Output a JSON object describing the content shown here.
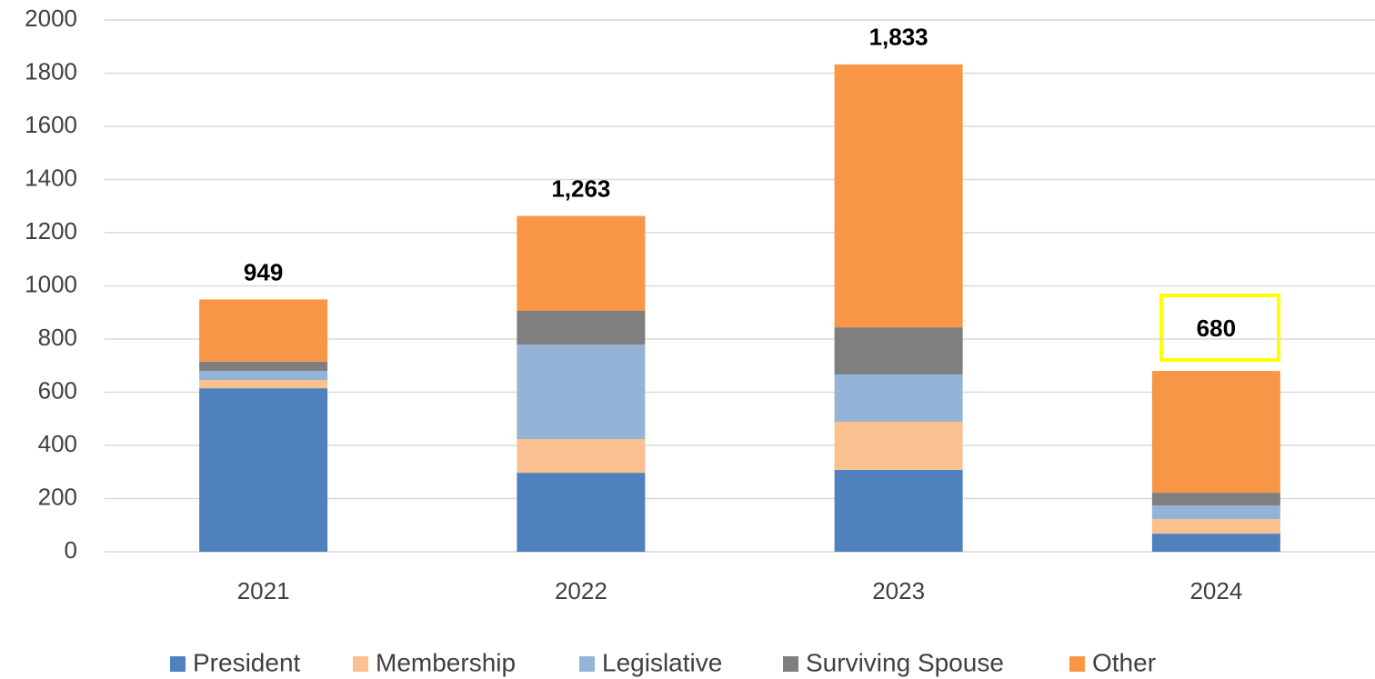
{
  "chart_data": {
    "type": "stacked_bar",
    "categories": [
      "2021",
      "2022",
      "2023",
      "2024"
    ],
    "series": [
      {
        "name": "President",
        "color": "#4f81bd",
        "values": [
          615,
          297,
          308,
          68
        ]
      },
      {
        "name": "Membership",
        "color": "#fac090",
        "values": [
          31,
          127,
          181,
          55
        ]
      },
      {
        "name": "Legislative",
        "color": "#95b3d7",
        "values": [
          34,
          355,
          178,
          51
        ]
      },
      {
        "name": "Surviving Spouse",
        "color": "#7f7f7f",
        "values": [
          35,
          127,
          177,
          48
        ]
      },
      {
        "name": "Other",
        "color": "#f79646",
        "values": [
          234,
          357,
          989,
          458
        ]
      }
    ],
    "totals": [
      949,
      1263,
      1833,
      680
    ],
    "total_labels": [
      "949",
      "1,263",
      "1,833",
      "680"
    ],
    "ylim": [
      0,
      2000
    ],
    "yticks": [
      0,
      200,
      400,
      600,
      800,
      1000,
      1200,
      1400,
      1600,
      1800,
      2000
    ],
    "grid": true,
    "legend": "bottom"
  }
}
